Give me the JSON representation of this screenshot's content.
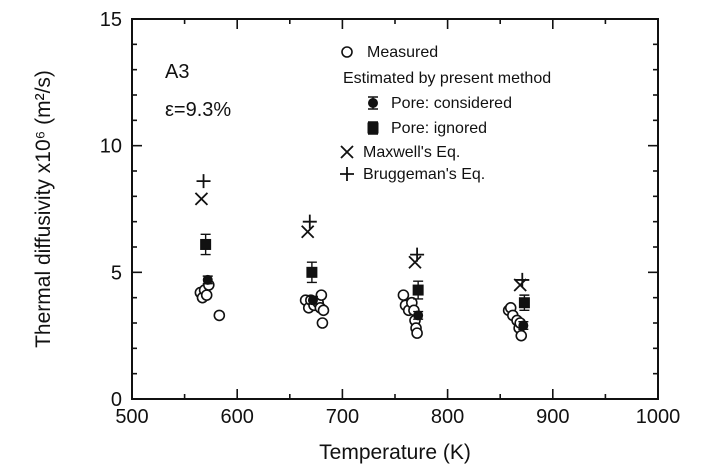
{
  "chart_data": {
    "type": "scatter",
    "xlabel": "Temperature (K)",
    "ylabel": "Thermal diffusivity x10⁶ (m²/s)",
    "xlim": [
      500,
      1000
    ],
    "ylim": [
      0,
      15
    ],
    "xticks": [
      500,
      600,
      700,
      800,
      900,
      1000
    ],
    "yticks": [
      0,
      5,
      10,
      15
    ],
    "grid": false,
    "legend_position": "top-right",
    "annotations": {
      "sample": "A3",
      "porosity": "ε=9.3%"
    },
    "legend_header": "Estimated by present method",
    "series": [
      {
        "name": "Measured",
        "marker": "open-circle",
        "x": [
          565,
          567,
          569,
          571,
          573,
          583,
          665,
          668,
          670,
          673,
          677,
          679,
          680,
          681,
          682,
          758,
          760,
          763,
          766,
          768,
          769,
          770,
          771,
          858,
          860,
          862,
          866,
          868,
          869,
          870
        ],
        "y": [
          4.2,
          4.0,
          4.3,
          4.1,
          4.5,
          3.3,
          3.9,
          3.6,
          3.9,
          3.7,
          3.8,
          3.6,
          4.1,
          3.0,
          3.5,
          4.1,
          3.7,
          3.5,
          3.8,
          3.5,
          3.1,
          2.8,
          2.6,
          3.5,
          3.6,
          3.3,
          3.1,
          2.8,
          3.0,
          2.5
        ]
      },
      {
        "name": "Pore: considered",
        "marker": "filled-circle",
        "x": [
          572,
          672,
          772,
          872
        ],
        "y": [
          4.7,
          3.9,
          3.3,
          2.9
        ],
        "err": [
          0.15,
          0.15,
          0.15,
          0.15
        ]
      },
      {
        "name": "Pore: ignored",
        "marker": "filled-square",
        "x": [
          570,
          671,
          772,
          873
        ],
        "y": [
          6.1,
          5.0,
          4.3,
          3.8
        ],
        "err": [
          0.4,
          0.4,
          0.35,
          0.3
        ]
      },
      {
        "name": "Maxwell's Eq.",
        "marker": "x",
        "x": [
          566,
          667,
          769,
          869
        ],
        "y": [
          7.9,
          6.6,
          5.4,
          4.5
        ]
      },
      {
        "name": "Bruggeman's Eq.",
        "marker": "plus",
        "x": [
          568,
          669,
          771,
          871
        ],
        "y": [
          8.6,
          7.0,
          5.7,
          4.7
        ]
      }
    ]
  }
}
